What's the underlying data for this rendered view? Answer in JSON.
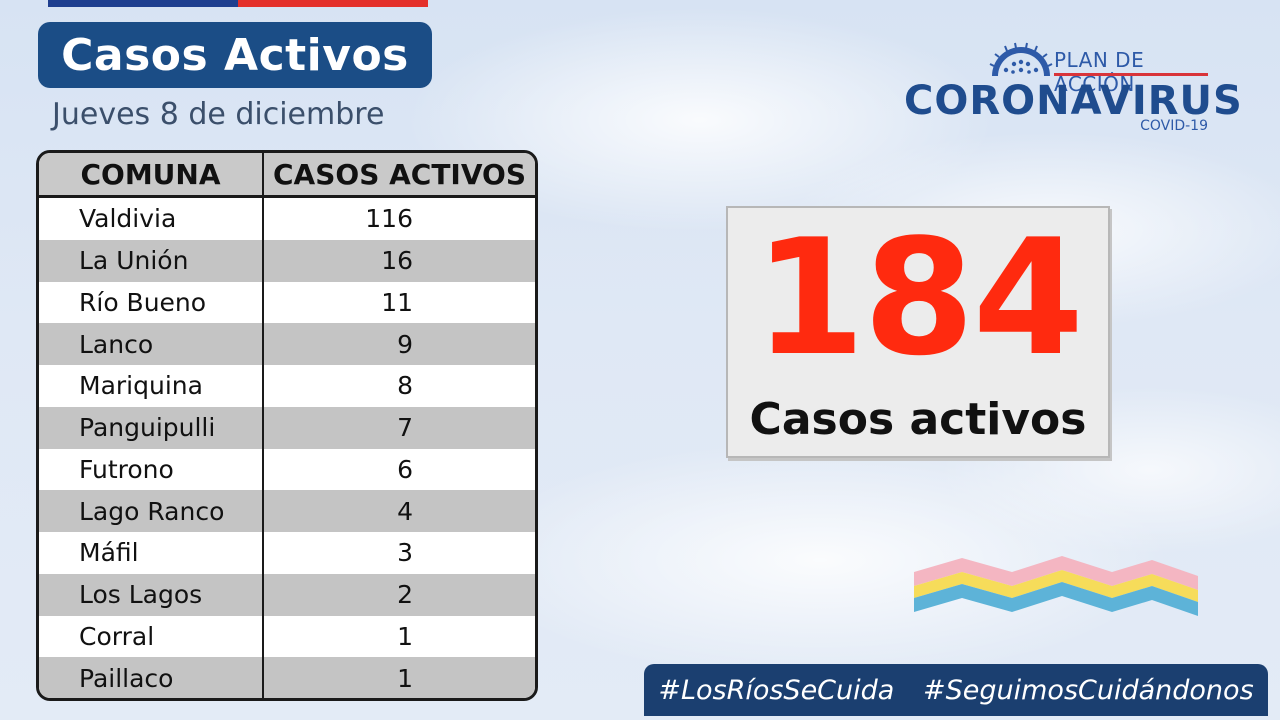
{
  "header": {
    "title": "Casos Activos",
    "date": "Jueves 8 de diciembre"
  },
  "logo": {
    "plan": "PLAN DE ACCIÓN",
    "name": "CORONAVIRUS",
    "sub": "COVID-19",
    "icon": "virus-icon"
  },
  "table": {
    "headers": [
      "COMUNA",
      "CASOS ACTIVOS"
    ],
    "rows": [
      {
        "comuna": "Valdivia",
        "casos": "116"
      },
      {
        "comuna": "La Unión",
        "casos": "16"
      },
      {
        "comuna": "Río Bueno",
        "casos": "11"
      },
      {
        "comuna": "Lanco",
        "casos": "9"
      },
      {
        "comuna": "Mariquina",
        "casos": "8"
      },
      {
        "comuna": "Panguipulli",
        "casos": "7"
      },
      {
        "comuna": "Futrono",
        "casos": "6"
      },
      {
        "comuna": "Lago Ranco",
        "casos": "4"
      },
      {
        "comuna": "Máfil",
        "casos": "3"
      },
      {
        "comuna": "Los Lagos",
        "casos": "2"
      },
      {
        "comuna": "Corral",
        "casos": "1"
      },
      {
        "comuna": "Paillaco",
        "casos": "1"
      }
    ]
  },
  "total": {
    "number": "184",
    "label": "Casos activos"
  },
  "hashtags": [
    "#LosRíosSeCuida",
    "#SeguimosCuidándonos"
  ],
  "colors": {
    "title_bg": "#1b4d86",
    "accent_red": "#ff2a0f",
    "hashtag_bg": "#1b3f70"
  }
}
